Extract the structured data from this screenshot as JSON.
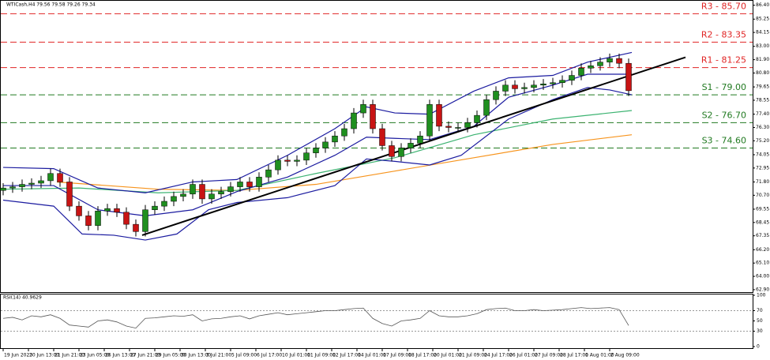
{
  "chart_data": [
    {
      "type": "candlestick",
      "title": "WTICash,H4 79.56 79.58 79.26 79.34",
      "xlim": [
        -1,
        237.25
      ],
      "ylim": [
        62.7,
        86.7
      ],
      "yticks": [
        {
          "value": 86.4,
          "label": "86.40"
        },
        {
          "value": 85.25,
          "label": "85.25"
        },
        {
          "value": 84.15,
          "label": "84.15"
        },
        {
          "value": 83,
          "label": "83.00"
        },
        {
          "value": 81.9,
          "label": "81.90"
        },
        {
          "value": 80.8,
          "label": "80.80"
        },
        {
          "value": 79.65,
          "label": "79.65"
        },
        {
          "value": 78.55,
          "label": "78.55"
        },
        {
          "value": 77.4,
          "label": "77.40"
        },
        {
          "value": 76.3,
          "label": "76.30"
        },
        {
          "value": 75.2,
          "label": "75.20"
        },
        {
          "value": 74.05,
          "label": "74.05"
        },
        {
          "value": 72.95,
          "label": "72.95"
        },
        {
          "value": 71.8,
          "label": "71.80"
        },
        {
          "value": 70.7,
          "label": "70.70"
        },
        {
          "value": 69.55,
          "label": "69.55"
        },
        {
          "value": 68.45,
          "label": "68.45"
        },
        {
          "value": 67.35,
          "label": "67.35"
        },
        {
          "value": 66.2,
          "label": "66.20"
        },
        {
          "value": 65.1,
          "label": "65.10"
        },
        {
          "value": 64,
          "label": "64.00"
        },
        {
          "value": 62.9,
          "label": "62.90"
        }
      ],
      "xticks": [
        {
          "value": 0,
          "label": "19 Jun 2023"
        },
        {
          "value": 8,
          "label": "20 Jun 13:00"
        },
        {
          "value": 16,
          "label": "21 Jun 21:00"
        },
        {
          "value": 24,
          "label": "23 Jun 05:00"
        },
        {
          "value": 32,
          "label": "26 Jun 13:00"
        },
        {
          "value": 40,
          "label": "27 Jun 21:00"
        },
        {
          "value": 48,
          "label": "29 Jun 05:00"
        },
        {
          "value": 56,
          "label": "30 Jun 13:00"
        },
        {
          "value": 64,
          "label": "3 Jul 21:00"
        },
        {
          "value": 72,
          "label": "5 Jul 09:00"
        },
        {
          "value": 80,
          "label": "6 Jul 17:00"
        },
        {
          "value": 88,
          "label": "10 Jul 01:00"
        },
        {
          "value": 96,
          "label": "11 Jul 09:00"
        },
        {
          "value": 104,
          "label": "12 Jul 17:00"
        },
        {
          "value": 112,
          "label": "14 Jul 01:00"
        },
        {
          "value": 120,
          "label": "17 Jul 09:00"
        },
        {
          "value": 128,
          "label": "18 Jul 17:00"
        },
        {
          "value": 136,
          "label": "20 Jul 01:00"
        },
        {
          "value": 144,
          "label": "21 Jul 09:00"
        },
        {
          "value": 152,
          "label": "24 Jul 17:00"
        },
        {
          "value": 160,
          "label": "26 Jul 01:00"
        },
        {
          "value": 168,
          "label": "27 Jul 09:00"
        },
        {
          "value": 176,
          "label": "28 Jul 17:00"
        },
        {
          "value": 184,
          "label": "1 Aug 01:00"
        },
        {
          "value": 192,
          "label": "2 Aug 09:00"
        }
      ],
      "up_color": "#1f8f1f",
      "down_color": "#c81414",
      "x": [
        0,
        3,
        6,
        9,
        12,
        15,
        18,
        21,
        24,
        27,
        30,
        33,
        36,
        39,
        42,
        45,
        48,
        51,
        54,
        57,
        60,
        63,
        66,
        69,
        72,
        75,
        78,
        81,
        84,
        87,
        90,
        93,
        96,
        99,
        102,
        105,
        108,
        111,
        114,
        117,
        120,
        123,
        126,
        129,
        132,
        135,
        138,
        141,
        144,
        147,
        150,
        153,
        156,
        159,
        162,
        165,
        168,
        171,
        174,
        177,
        180,
        183,
        186,
        189,
        192,
        195,
        198
      ],
      "open": [
        71.1,
        71.3,
        71.4,
        71.6,
        71.7,
        71.9,
        72.5,
        71.8,
        69.8,
        69.0,
        68.2,
        69.4,
        69.6,
        69.3,
        68.3,
        67.7,
        69.5,
        69.8,
        70.2,
        70.6,
        70.8,
        71.6,
        70.4,
        70.8,
        71.0,
        71.4,
        71.8,
        71.4,
        72.2,
        72.8,
        73.6,
        73.5,
        73.6,
        74.2,
        74.6,
        75.1,
        75.6,
        76.2,
        77.5,
        78.2,
        76.2,
        74.8,
        73.9,
        74.6,
        75.0,
        75.6,
        78.2,
        76.4,
        76.3,
        76.3,
        76.7,
        77.3,
        78.6,
        79.3,
        79.8,
        79.5,
        79.6,
        79.8,
        79.9,
        80.0,
        80.2,
        80.6,
        81.2,
        81.4,
        81.7,
        82.0,
        81.6
      ],
      "high": [
        71.7,
        71.8,
        72.0,
        72.1,
        72.3,
        72.9,
        72.9,
        72.2,
        70.2,
        69.4,
        69.8,
        70.0,
        70.0,
        69.7,
        68.7,
        69.9,
        70.2,
        70.6,
        71.0,
        71.2,
        72.0,
        72.0,
        71.2,
        71.4,
        71.8,
        72.2,
        72.2,
        72.6,
        73.2,
        74.0,
        74.0,
        74.0,
        74.6,
        75.0,
        75.5,
        76.0,
        76.6,
        77.9,
        78.6,
        78.6,
        76.6,
        75.2,
        75.0,
        75.4,
        76.0,
        78.6,
        78.6,
        76.8,
        76.7,
        77.1,
        77.7,
        79.0,
        79.7,
        80.2,
        80.2,
        80.0,
        80.2,
        80.3,
        80.4,
        80.6,
        81.0,
        81.6,
        81.8,
        82.1,
        82.4,
        82.4,
        82.0
      ],
      "low": [
        70.7,
        70.9,
        71.0,
        71.2,
        71.3,
        71.5,
        71.4,
        69.4,
        68.6,
        67.8,
        67.8,
        69.0,
        68.9,
        67.9,
        67.3,
        67.3,
        69.1,
        69.4,
        69.8,
        70.2,
        70.4,
        70.0,
        70.0,
        70.4,
        70.6,
        71.0,
        71.0,
        71.0,
        71.8,
        72.4,
        73.1,
        73.1,
        73.2,
        73.8,
        74.2,
        74.7,
        75.2,
        75.8,
        77.1,
        75.8,
        74.4,
        73.5,
        73.5,
        74.2,
        74.6,
        75.2,
        76.0,
        75.9,
        75.9,
        75.9,
        76.3,
        76.9,
        78.2,
        78.9,
        79.1,
        79.1,
        79.2,
        79.4,
        79.5,
        79.6,
        79.8,
        80.2,
        80.8,
        81.0,
        81.3,
        81.2,
        78.9
      ],
      "close": [
        71.3,
        71.4,
        71.6,
        71.7,
        71.9,
        72.5,
        71.8,
        69.8,
        69.0,
        68.2,
        69.4,
        69.6,
        69.3,
        68.3,
        67.7,
        69.5,
        69.8,
        70.2,
        70.6,
        70.8,
        71.6,
        70.4,
        70.8,
        71.0,
        71.4,
        71.8,
        71.4,
        72.2,
        72.8,
        73.6,
        73.5,
        73.6,
        74.2,
        74.6,
        75.1,
        75.6,
        76.2,
        77.5,
        78.2,
        76.2,
        74.8,
        73.9,
        74.6,
        75.0,
        75.6,
        78.2,
        76.4,
        76.3,
        76.3,
        76.7,
        77.3,
        78.6,
        79.3,
        79.8,
        79.5,
        79.6,
        79.8,
        79.9,
        80.0,
        80.2,
        80.6,
        81.2,
        81.4,
        81.7,
        82.0,
        81.6,
        79.34
      ],
      "overlays": [
        {
          "color": "#f7941d",
          "x": [
            17,
            49,
            74,
            99,
            124,
            149,
            174,
            199
          ],
          "values": [
            71.8,
            71.2,
            71.1,
            71.6,
            72.7,
            73.8,
            74.9,
            75.7
          ]
        },
        {
          "color": "#3cb371",
          "x": [
            0,
            24,
            49,
            74,
            99,
            124,
            149,
            174,
            199
          ],
          "values": [
            71.2,
            71.3,
            70.9,
            71.1,
            72.5,
            73.8,
            75.7,
            77.0,
            77.7
          ]
        },
        {
          "color": "#1c1ca0",
          "x": [
            0,
            16,
            30,
            45,
            60,
            74,
            90,
            105,
            115,
            124,
            135,
            149,
            160,
            174,
            185,
            199
          ],
          "values": [
            73.0,
            72.9,
            71.3,
            70.9,
            71.8,
            72.0,
            74.0,
            76.2,
            78.0,
            77.5,
            77.4,
            79.3,
            80.4,
            80.6,
            81.7,
            82.5
          ]
        },
        {
          "color": "#1c1ca0",
          "x": [
            0,
            16,
            30,
            45,
            60,
            74,
            90,
            105,
            115,
            124,
            135,
            149,
            160,
            174,
            185,
            199
          ],
          "values": [
            71.5,
            71.5,
            69.5,
            69.0,
            69.5,
            71.0,
            72.2,
            74.0,
            75.5,
            75.4,
            75.3,
            76.4,
            78.8,
            79.8,
            80.7,
            80.7
          ]
        },
        {
          "color": "#1c1ca0",
          "x": [
            0,
            16,
            25,
            35,
            45,
            55,
            65,
            74,
            90,
            105,
            115,
            124,
            135,
            145,
            160,
            174,
            185,
            192,
            199
          ],
          "values": [
            70.3,
            69.8,
            67.5,
            67.4,
            67.0,
            67.5,
            69.5,
            70.1,
            70.5,
            71.5,
            73.7,
            73.5,
            73.2,
            74.0,
            77.0,
            78.6,
            79.6,
            79.4,
            79.0
          ]
        }
      ],
      "trendline": {
        "color": "#000000",
        "x": [
          44,
          216
        ],
        "values": [
          67.4,
          82.1
        ]
      },
      "levels": [
        {
          "label": "R3 - 85.70",
          "value": 85.7,
          "color": "#e02424"
        },
        {
          "label": "R2 - 83.35",
          "value": 83.35,
          "color": "#e02424"
        },
        {
          "label": "R1 - 81.25",
          "value": 81.25,
          "color": "#e02424"
        },
        {
          "label": "S1 - 79.00",
          "value": 79.0,
          "color": "#217a21"
        },
        {
          "label": "S2 - 76.70",
          "value": 76.7,
          "color": "#217a21"
        },
        {
          "label": "S3 - 74.60",
          "value": 74.6,
          "color": "#217a21"
        }
      ]
    },
    {
      "type": "line",
      "title": "RSI(14) 40.9629",
      "color": "#555555",
      "xlim": [
        -1,
        237.25
      ],
      "ylim": [
        0,
        100
      ],
      "yticks": [
        100,
        70,
        50,
        30,
        0
      ],
      "levels": [
        70,
        30
      ],
      "x": [
        0,
        3,
        6,
        9,
        12,
        15,
        18,
        21,
        24,
        27,
        30,
        33,
        36,
        39,
        42,
        45,
        48,
        51,
        54,
        57,
        60,
        63,
        66,
        69,
        72,
        75,
        78,
        81,
        84,
        87,
        90,
        93,
        96,
        99,
        102,
        105,
        108,
        111,
        114,
        117,
        120,
        123,
        126,
        129,
        132,
        135,
        138,
        141,
        144,
        147,
        150,
        153,
        156,
        159,
        162,
        165,
        168,
        171,
        174,
        177,
        180,
        183,
        186,
        189,
        192,
        195,
        198
      ],
      "values": [
        55,
        57,
        52,
        60,
        58,
        62,
        55,
        42,
        40,
        38,
        50,
        52,
        48,
        40,
        36,
        55,
        56,
        58,
        60,
        59,
        62,
        50,
        54,
        55,
        58,
        60,
        54,
        60,
        63,
        66,
        62,
        64,
        66,
        68,
        70,
        70,
        72,
        74,
        75,
        55,
        45,
        40,
        50,
        52,
        55,
        70,
        60,
        58,
        58,
        60,
        64,
        72,
        74,
        75,
        70,
        70,
        72,
        70,
        71,
        72,
        74,
        76,
        74,
        75,
        76,
        72,
        41
      ]
    }
  ]
}
